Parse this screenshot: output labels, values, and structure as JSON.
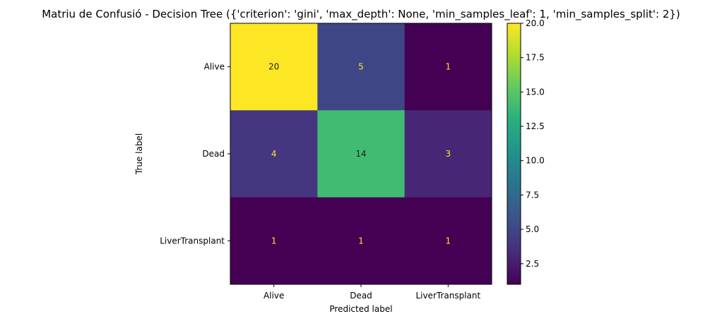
{
  "chart_data": {
    "type": "heatmap",
    "title": "Matriu de Confusió - Decision Tree ({'criterion': 'gini', 'max_depth': None, 'min_samples_leaf': 1, 'min_samples_split': 2})",
    "xlabel": "Predicted label",
    "ylabel": "True label",
    "x_categories": [
      "Alive",
      "Dead",
      "LiverTransplant"
    ],
    "y_categories": [
      "Alive",
      "Dead",
      "LiverTransplant"
    ],
    "matrix": [
      [
        20,
        5,
        1
      ],
      [
        4,
        14,
        3
      ],
      [
        1,
        1,
        1
      ]
    ],
    "colormap": "viridis",
    "colorbar": {
      "range": [
        1,
        20
      ],
      "ticks": [
        "2.5",
        "5.0",
        "7.5",
        "10.0",
        "12.5",
        "15.0",
        "17.5",
        "20.0"
      ]
    },
    "grid": false
  }
}
